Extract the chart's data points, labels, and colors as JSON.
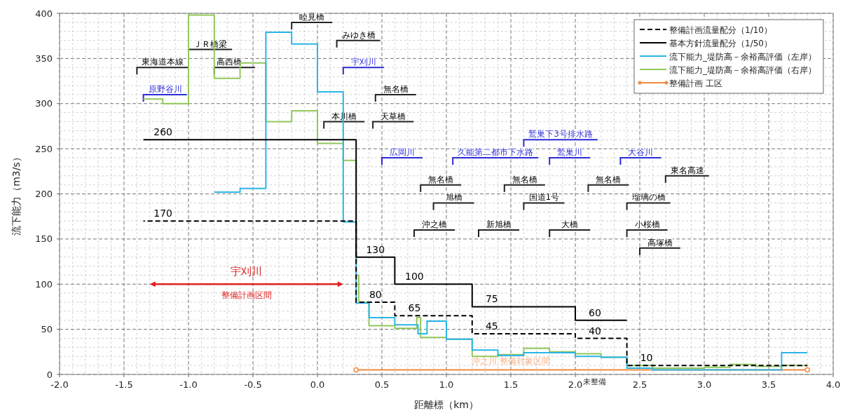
{
  "chart_data": {
    "type": "step",
    "xlabel": "距離標（km）",
    "ylabel": "流下能力（m3/s）",
    "xlim": [
      -2,
      4
    ],
    "ylim": [
      0,
      400
    ],
    "xticks": [
      {
        "value": -2,
        "label": "-2.0"
      },
      {
        "value": -1.5,
        "label": "-1.5"
      },
      {
        "value": -1,
        "label": "-1.0"
      },
      {
        "value": -0.5,
        "label": "-0.5"
      },
      {
        "value": 0,
        "label": "0.0"
      },
      {
        "value": 0.5,
        "label": "0.5"
      },
      {
        "value": 1,
        "label": "1.0"
      },
      {
        "value": 1.5,
        "label": "1.5"
      },
      {
        "value": 2,
        "label": "2.0"
      },
      {
        "value": 2.5,
        "label": "2.5"
      },
      {
        "value": 3,
        "label": "3.0"
      },
      {
        "value": 3.5,
        "label": "3.5"
      },
      {
        "value": 4,
        "label": "4.0"
      }
    ],
    "yticks": [
      0,
      50,
      100,
      150,
      200,
      250,
      300,
      350,
      400
    ],
    "grid": true,
    "legend": "top right",
    "series": [
      {
        "name": "整備計画流量配分（1/10）",
        "color": "#000000",
        "line_style": "dashed",
        "x": [
          -1.35,
          0.3,
          0.6,
          1.2,
          2.0,
          2.4,
          3.8
        ],
        "values": [
          170,
          80,
          65,
          45,
          40,
          10,
          10
        ],
        "value_labels": [
          "170",
          "80",
          "65",
          "45",
          "40",
          "10",
          null
        ]
      },
      {
        "name": "基本方針流量配分（1/50）",
        "color": "#000000",
        "line_style": "solid",
        "x": [
          -1.35,
          0.3,
          0.6,
          1.2,
          2.0,
          2.4
        ],
        "values": [
          260,
          130,
          100,
          75,
          60,
          60
        ],
        "value_labels": [
          "260",
          "130",
          "100",
          "75",
          "60",
          null
        ]
      },
      {
        "name": "流下能力_堤防高－余裕高評価（左岸）",
        "color": "#2bb5e6",
        "x": [
          -0.8,
          -0.6,
          -0.4,
          -0.2,
          0.0,
          0.2,
          0.3,
          0.4,
          0.6,
          0.78,
          0.85,
          1.0,
          1.2,
          1.4,
          1.6,
          1.8,
          2.0,
          2.2,
          2.4,
          2.6,
          3.6,
          3.8
        ],
        "values": [
          202,
          206,
          379,
          366,
          313,
          169,
          79,
          63,
          55,
          45,
          59,
          39,
          27,
          21,
          24,
          24,
          20,
          19,
          7,
          5,
          24,
          24
        ]
      },
      {
        "name": "流下能力_堤防高－余裕高評価（右岸）",
        "color": "#92c85a",
        "x": [
          -1.35,
          -1.2,
          -1.0,
          -0.8,
          -0.6,
          -0.4,
          -0.2,
          0.0,
          0.2,
          0.3,
          0.32,
          0.4,
          0.6,
          0.77,
          0.8,
          1.0,
          1.2,
          1.4,
          1.6,
          1.8,
          2.0,
          2.2,
          2.4,
          2.6,
          3.0,
          3.2,
          3.4,
          3.6,
          3.8
        ],
        "values": [
          305,
          300,
          398,
          328,
          345,
          280,
          292,
          256,
          237,
          110,
          80,
          54,
          51,
          63,
          41,
          39,
          20,
          22,
          29,
          25,
          23,
          19,
          10,
          7,
          8,
          11,
          9,
          10,
          10
        ]
      },
      {
        "name": "整備計画 工区",
        "color": "#f08a40",
        "marker": "circle",
        "x": [
          0.3,
          3.8
        ],
        "values": [
          5,
          5
        ]
      }
    ],
    "annotations": [
      "宇刈川",
      "整備計画区間",
      "東海道本線",
      "原野谷川",
      "ＪＲ橋梁",
      {
        "text": "高西橋",
        "x": -0.8,
        "y": 340
      },
      "睦見橋",
      "みゆき橋",
      "宇刈川",
      "無名橋",
      "本川橋",
      "天草橋",
      "鷲巣下3号排水路",
      "広岡川",
      "久能第二都市下水路",
      "鷲巣川",
      "大谷川",
      "東名高速",
      "無名橋",
      "無名橋",
      "無名橋",
      "旭橋",
      "国道1号",
      "瑠璃の橋",
      "沖之橋",
      "新旭橋",
      "大橋",
      "小桜橋",
      "高塚橋",
      "沖之川 整備対象区間",
      "未整備"
    ]
  }
}
